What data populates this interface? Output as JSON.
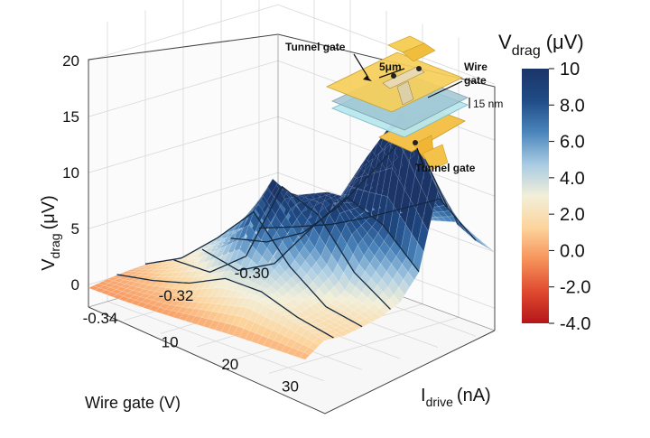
{
  "chart_data": {
    "type": "surface3d",
    "title": "",
    "zlabel": "V",
    "zlabel_sub": "drag",
    "zlabel_unit": "(μV)",
    "xlabel": "Wire gate (V)",
    "ylabel": "I",
    "ylabel_sub": "drive",
    "ylabel_unit": "(nA)",
    "x_ticks": [
      "-0.34",
      "-0.32",
      "-0.30"
    ],
    "y_ticks": [
      "10",
      "20",
      "30"
    ],
    "z_ticks": [
      "0",
      "5",
      "10",
      "15",
      "20"
    ],
    "xlim": [
      -0.345,
      -0.295
    ],
    "ylim": [
      0,
      36
    ],
    "zlim": [
      -2,
      23
    ],
    "wire_gate_V": [
      -0.345,
      -0.34,
      -0.335,
      -0.33,
      -0.325,
      -0.32,
      -0.315,
      -0.31,
      -0.305,
      -0.3,
      -0.295
    ],
    "i_drive_nA": [
      0,
      6,
      12,
      18,
      24,
      30,
      36
    ],
    "v_drag_uV": [
      [
        -0.3,
        -0.3,
        -0.2,
        0.0,
        0.2,
        0.3,
        0.4
      ],
      [
        0.0,
        0.3,
        0.8,
        2.0,
        3.0,
        2.4,
        1.6
      ],
      [
        0.2,
        1.2,
        2.6,
        4.6,
        3.6,
        2.0,
        1.5
      ],
      [
        0.3,
        2.0,
        5.0,
        8.5,
        4.8,
        2.4,
        1.8
      ],
      [
        0.2,
        1.6,
        4.6,
        11.0,
        6.8,
        3.4,
        2.2
      ],
      [
        -0.4,
        -1.6,
        0.6,
        9.0,
        10.5,
        6.0,
        3.0
      ],
      [
        0.1,
        -0.6,
        1.2,
        5.5,
        9.5,
        8.2,
        5.2
      ],
      [
        0.3,
        0.8,
        2.8,
        6.5,
        12.5,
        18.0,
        12.0
      ],
      [
        0.4,
        1.6,
        3.6,
        7.0,
        10.0,
        14.0,
        8.5
      ],
      [
        0.5,
        1.8,
        3.2,
        5.0,
        7.0,
        9.0,
        6.5
      ],
      [
        0.5,
        1.8,
        3.0,
        4.2,
        5.5,
        6.5,
        5.0
      ]
    ],
    "colorbar": {
      "title": "V",
      "title_sub": "drag",
      "unit": "(μV)",
      "ticks": [
        "10",
        "8.0",
        "6.0",
        "4.0",
        "2.0",
        "0.0",
        "-2.0",
        "-4.0"
      ],
      "range": [
        -4,
        10
      ],
      "stops": [
        "#b5161a",
        "#e04a2f",
        "#f6925a",
        "#fcd49c",
        "#f2efd9",
        "#a8cbe2",
        "#4b85bc",
        "#1f4b86",
        "#1b3568"
      ]
    }
  },
  "inset": {
    "label_tunnel_top": "Tunnel gate",
    "label_tunnel_bottom": "Tunnel gate",
    "label_wire": "Wire",
    "label_gate": "gate",
    "label_scale": "5μm",
    "label_thickness": "15 nm"
  }
}
